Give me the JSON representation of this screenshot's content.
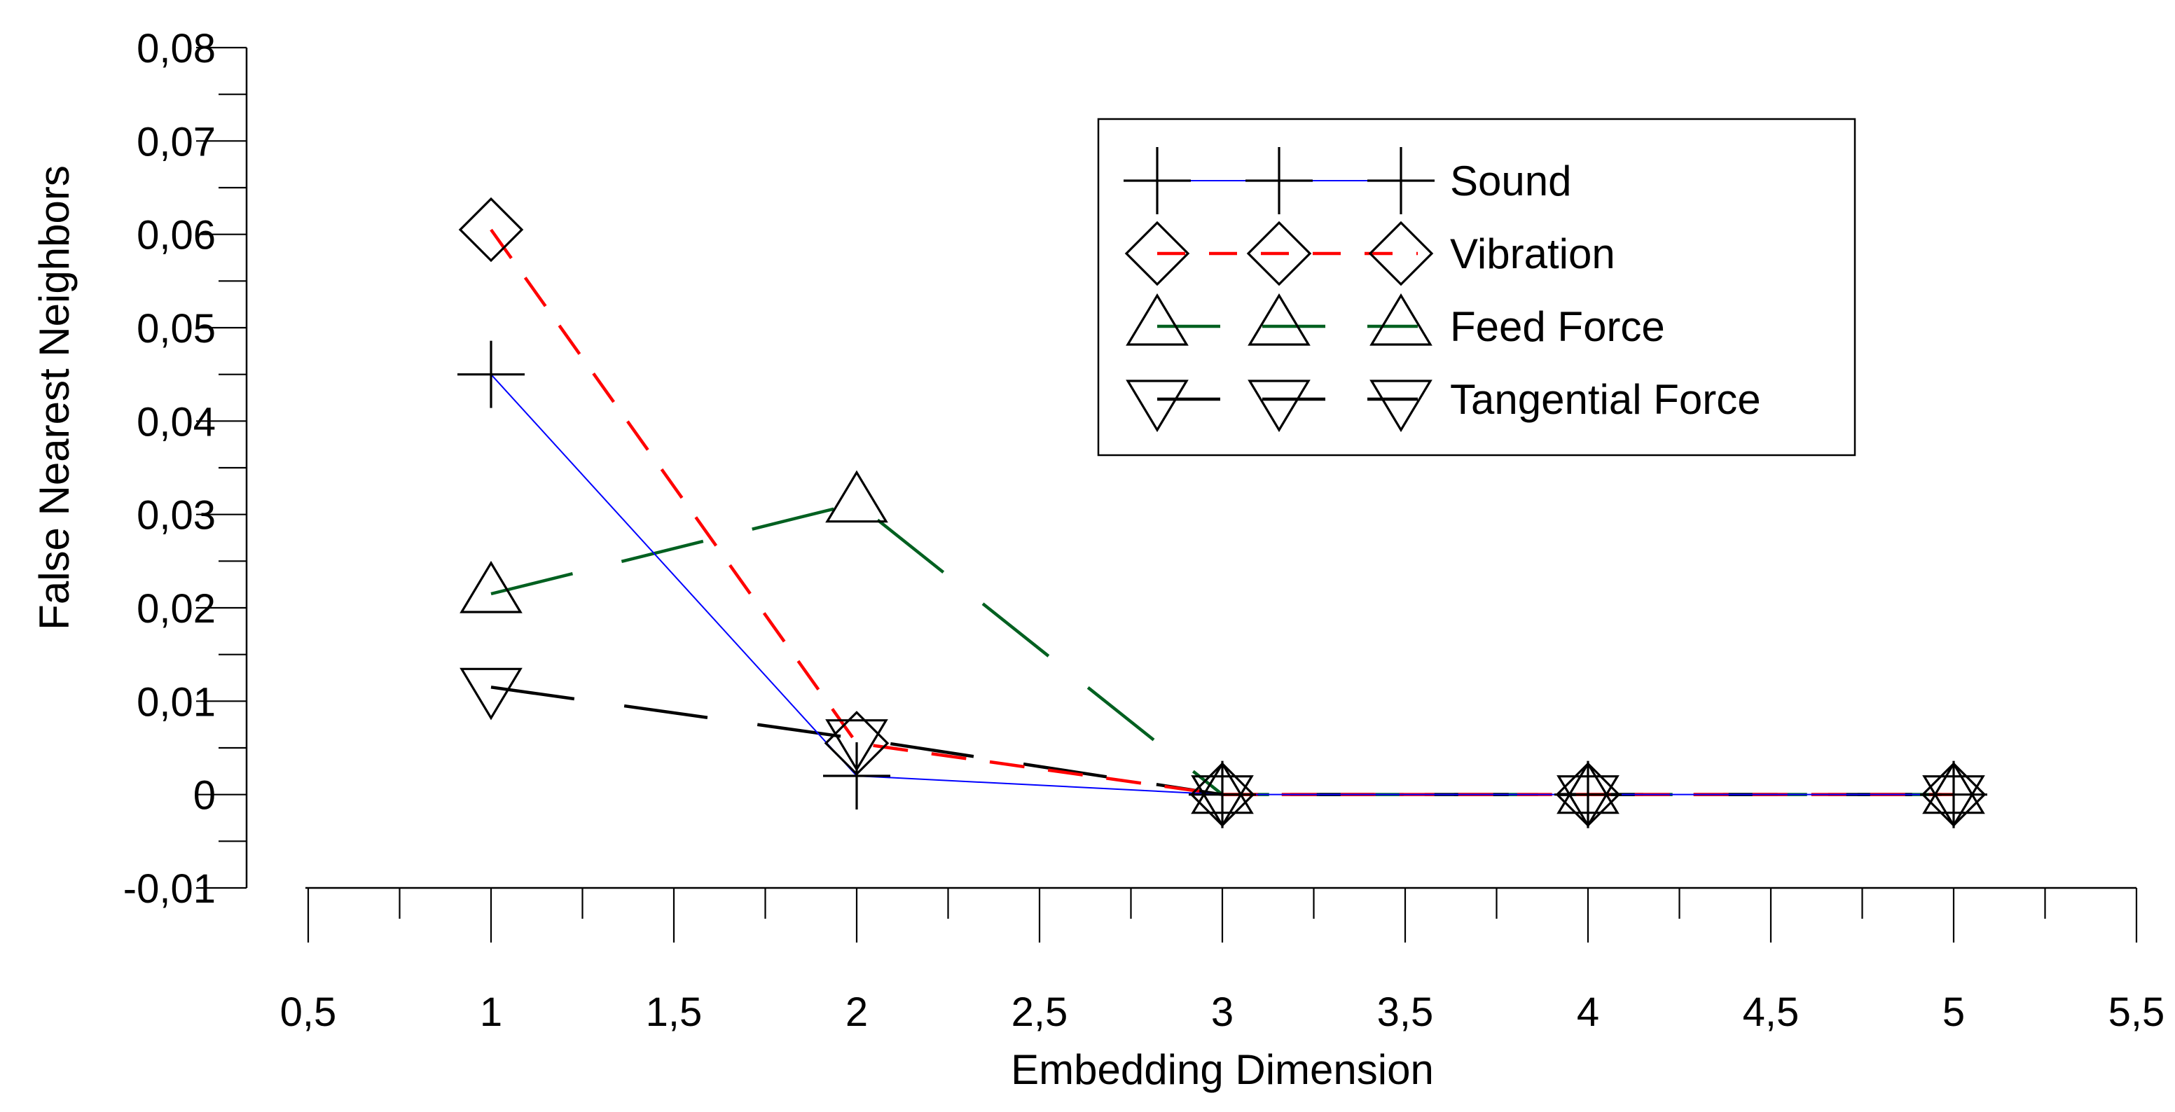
{
  "chart_data": {
    "type": "line",
    "title": "",
    "xlabel": "Embedding Dimension",
    "ylabel": "False Nearest Neighbors",
    "xlim": [
      0.5,
      5.5
    ],
    "ylim": [
      -0.01,
      0.08
    ],
    "x_ticks": [
      0.5,
      1,
      1.5,
      2,
      2.5,
      3,
      3.5,
      4,
      4.5,
      5,
      5.5
    ],
    "x_tick_labels": [
      "0,5",
      "1",
      "1,5",
      "2",
      "2,5",
      "3",
      "3,5",
      "4",
      "4,5",
      "5",
      "5,5"
    ],
    "y_ticks": [
      -0.01,
      0,
      0.01,
      0.02,
      0.03,
      0.04,
      0.05,
      0.06,
      0.07,
      0.08
    ],
    "y_tick_labels": [
      "-0,01",
      "0",
      "0,01",
      "0,02",
      "0,03",
      "0,04",
      "0,05",
      "0,06",
      "0,07",
      "0,08"
    ],
    "grid": false,
    "legend_position": "top-right",
    "x": [
      1,
      2,
      3,
      4,
      5
    ],
    "series": [
      {
        "name": "Sound",
        "values": [
          0.045,
          0.002,
          0,
          0,
          0
        ],
        "color": "#0000ff",
        "dash": "solid",
        "marker": "plus"
      },
      {
        "name": "Vibration",
        "values": [
          0.0605,
          0.0055,
          0,
          0,
          0
        ],
        "color": "#ff0000",
        "dash": "dash-medium",
        "marker": "diamond"
      },
      {
        "name": "Feed Force",
        "values": [
          0.0215,
          0.0312,
          0,
          0,
          0
        ],
        "color": "#006020",
        "dash": "dash-long",
        "marker": "triangle-up"
      },
      {
        "name": "Tangential Force",
        "values": [
          0.0115,
          0.006,
          0,
          0,
          0
        ],
        "color": "#000000",
        "dash": "dash-long",
        "marker": "triangle-down"
      }
    ]
  }
}
